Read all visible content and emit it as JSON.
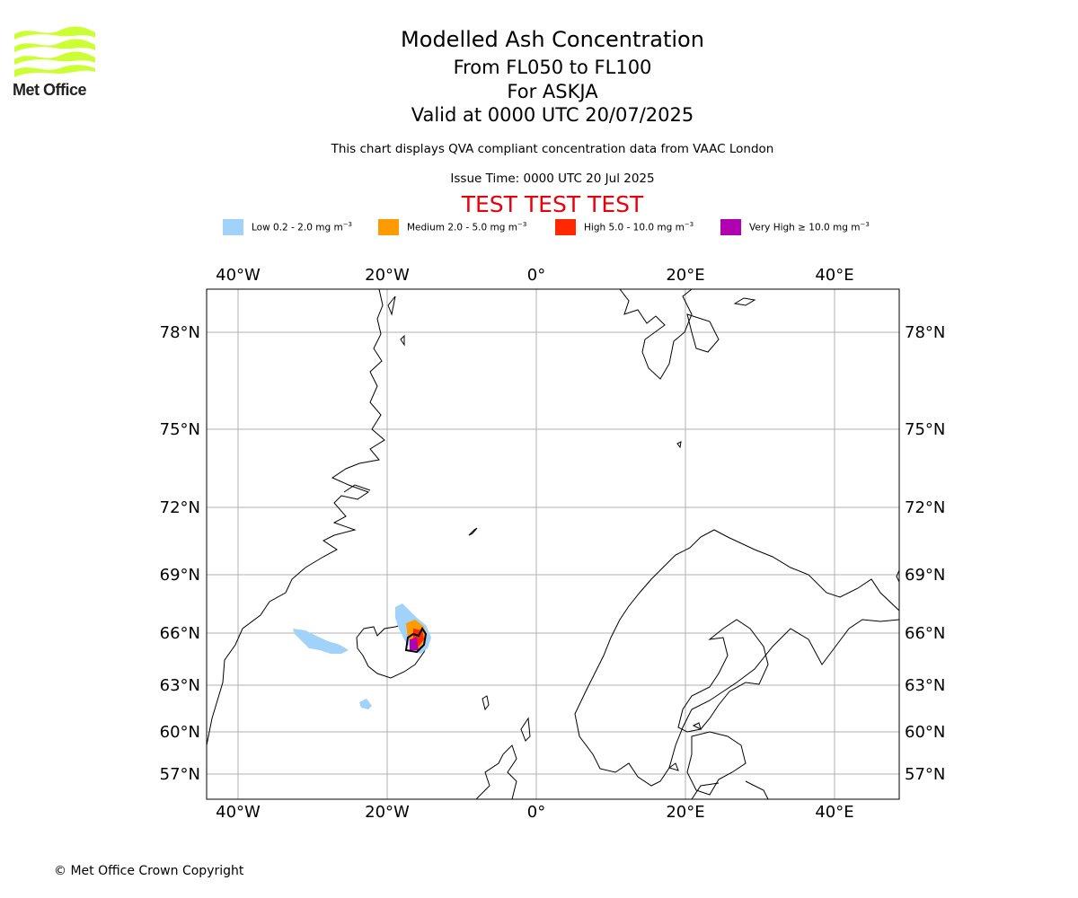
{
  "brand": {
    "name": "Met Office",
    "logo_color": "#ccff33"
  },
  "title": {
    "main": "Modelled Ash Concentration",
    "levels": "From FL050 to FL100",
    "volcano": "For ASKJA",
    "valid": "Valid at 0000 UTC 20/07/2025",
    "description": "This chart displays QVA compliant concentration data from VAAC London",
    "issue_time": "Issue Time: 0000 UTC 20 Jul 2025",
    "test_banner": "TEST TEST TEST",
    "test_color": "#e8000b"
  },
  "legend": [
    {
      "label": "Low 0.2 - 2.0 mg m",
      "unit_exp": "−3",
      "color": "#a0d2fa"
    },
    {
      "label": "Medium 2.0 - 5.0 mg m",
      "unit_exp": "−3",
      "color": "#ff9a00"
    },
    {
      "label": "High 5.0 - 10.0 mg m",
      "unit_exp": "−3",
      "color": "#ff2800"
    },
    {
      "label": "Very High  ≥  10.0 mg m",
      "unit_exp": "−3",
      "color": "#b000b0"
    }
  ],
  "map": {
    "lon_ticks": [
      "40°W",
      "20°W",
      "0°",
      "20°E",
      "40°E"
    ],
    "lat_ticks": [
      "78°N",
      "75°N",
      "72°N",
      "69°N",
      "66°N",
      "63°N",
      "60°N",
      "57°N"
    ],
    "extent": {
      "lon_min": -44,
      "lon_max": 48,
      "lat_min": 55.5,
      "lat_max": 79.5
    }
  },
  "footer": {
    "copyright": "© Met Office Crown Copyright"
  }
}
